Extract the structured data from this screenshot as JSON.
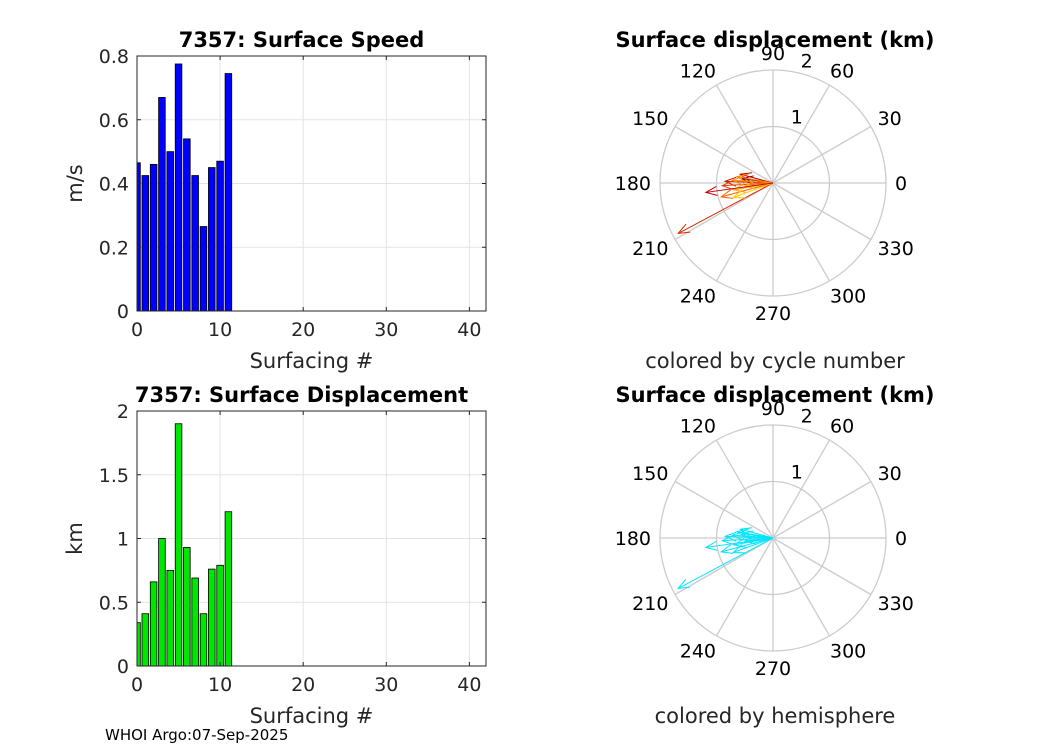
{
  "chart_data": [
    {
      "type": "bar",
      "title": "7357: Surface Speed",
      "xlabel": "Surfacing #",
      "ylabel": "m/s",
      "xlim": [
        0,
        42
      ],
      "ylim": [
        0,
        0.8
      ],
      "xticks": [
        0,
        10,
        20,
        30,
        40
      ],
      "yticks": [
        0,
        0.2,
        0.4,
        0.6,
        0.8
      ],
      "xtick_labels": [
        "0",
        "10",
        "20",
        "30",
        "40"
      ],
      "ytick_labels": [
        "0",
        "0.2",
        "0.4",
        "0.6",
        "0.8"
      ],
      "color": "#0000ff",
      "grid": true,
      "x": [
        0,
        1,
        2,
        3,
        4,
        5,
        6,
        7,
        8,
        9,
        10,
        11
      ],
      "values": [
        0.465,
        0.425,
        0.46,
        0.67,
        0.5,
        0.775,
        0.54,
        0.425,
        0.265,
        0.45,
        0.47,
        0.745
      ]
    },
    {
      "type": "bar",
      "title": "7357: Surface Displacement",
      "xlabel": "Surfacing #",
      "ylabel": "km",
      "xlim": [
        0,
        42
      ],
      "ylim": [
        0,
        2
      ],
      "xticks": [
        0,
        10,
        20,
        30,
        40
      ],
      "yticks": [
        0,
        0.5,
        1,
        1.5,
        2
      ],
      "xtick_labels": [
        "0",
        "10",
        "20",
        "30",
        "40"
      ],
      "ytick_labels": [
        "0",
        "0.5",
        "1",
        "1.5",
        "2"
      ],
      "color": "#00e600",
      "grid": true,
      "x": [
        0,
        1,
        2,
        3,
        4,
        5,
        6,
        7,
        8,
        9,
        10,
        11
      ],
      "values": [
        0.34,
        0.41,
        0.66,
        1.0,
        0.75,
        1.9,
        0.93,
        0.69,
        0.41,
        0.76,
        0.79,
        1.21
      ]
    },
    {
      "type": "polar-compass",
      "title": "Surface displacement (km)",
      "xlabel": "colored by cycle number",
      "rmax": 2,
      "rings": [
        1,
        2
      ],
      "ring_labels": [
        "1",
        "2"
      ],
      "angles": [
        0,
        30,
        60,
        90,
        120,
        150,
        180,
        210,
        240,
        270,
        300,
        330
      ],
      "angle_labels": [
        "0",
        "30",
        "60",
        "90",
        "120",
        "150",
        "180",
        "210",
        "240",
        "270",
        "300",
        "330"
      ],
      "vectors": [
        {
          "angle": 172,
          "r": 0.55,
          "color": "#7f0000"
        },
        {
          "angle": 165,
          "r": 0.6,
          "color": "#b40000"
        },
        {
          "angle": 178,
          "r": 0.85,
          "color": "#d21400"
        },
        {
          "angle": 183,
          "r": 0.9,
          "color": "#e63c00"
        },
        {
          "angle": 170,
          "r": 0.65,
          "color": "#ff8000"
        },
        {
          "angle": 208,
          "r": 1.9,
          "color": "#dc2800"
        },
        {
          "angle": 195,
          "r": 0.95,
          "color": "#ff6400"
        },
        {
          "angle": 190,
          "r": 0.7,
          "color": "#ffa500"
        },
        {
          "angle": 186,
          "r": 0.5,
          "color": "#ffb400"
        },
        {
          "angle": 200,
          "r": 0.75,
          "color": "#ffc800"
        },
        {
          "angle": 176,
          "r": 0.72,
          "color": "#ff9000"
        },
        {
          "angle": 188,
          "r": 1.2,
          "color": "#c80000"
        }
      ]
    },
    {
      "type": "polar-compass",
      "title": "Surface displacement (km)",
      "xlabel": "colored by hemisphere",
      "rmax": 2,
      "rings": [
        1,
        2
      ],
      "ring_labels": [
        "1",
        "2"
      ],
      "angles": [
        0,
        30,
        60,
        90,
        120,
        150,
        180,
        210,
        240,
        270,
        300,
        330
      ],
      "angle_labels": [
        "0",
        "30",
        "60",
        "90",
        "120",
        "150",
        "180",
        "210",
        "240",
        "270",
        "300",
        "330"
      ],
      "vectors": [
        {
          "angle": 172,
          "r": 0.55,
          "color": "#00e5ff"
        },
        {
          "angle": 165,
          "r": 0.6,
          "color": "#00e5ff"
        },
        {
          "angle": 178,
          "r": 0.85,
          "color": "#00e5ff"
        },
        {
          "angle": 183,
          "r": 0.9,
          "color": "#00e5ff"
        },
        {
          "angle": 170,
          "r": 0.65,
          "color": "#00e5ff"
        },
        {
          "angle": 208,
          "r": 1.9,
          "color": "#00e5ff"
        },
        {
          "angle": 195,
          "r": 0.95,
          "color": "#00e5ff"
        },
        {
          "angle": 190,
          "r": 0.7,
          "color": "#00e5ff"
        },
        {
          "angle": 186,
          "r": 0.5,
          "color": "#00e5ff"
        },
        {
          "angle": 200,
          "r": 0.75,
          "color": "#00e5ff"
        },
        {
          "angle": 176,
          "r": 0.72,
          "color": "#00e5ff"
        },
        {
          "angle": 188,
          "r": 1.2,
          "color": "#00e5ff"
        }
      ]
    }
  ],
  "footer": {
    "text": "WHOI Argo:07-Sep-2025"
  }
}
